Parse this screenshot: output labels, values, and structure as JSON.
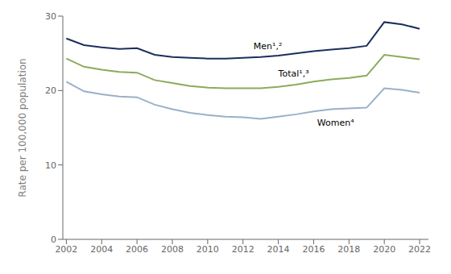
{
  "chart_data": {
    "type": "line",
    "ylabel": "Rate per 100,000 population",
    "x": [
      2002,
      2003,
      2004,
      2005,
      2006,
      2007,
      2008,
      2009,
      2010,
      2011,
      2012,
      2013,
      2014,
      2015,
      2016,
      2017,
      2018,
      2019,
      2020,
      2021,
      2022
    ],
    "series": [
      {
        "color": "#1b2f5e",
        "values": [
          27.0,
          26.1,
          25.8,
          25.6,
          25.7,
          24.8,
          24.5,
          24.4,
          24.3,
          24.3,
          24.4,
          24.5,
          24.7,
          25.0,
          25.3,
          25.5,
          25.7,
          26.0,
          29.2,
          28.9,
          28.3
        ]
      },
      {
        "color": "#8aac5a",
        "values": [
          24.3,
          23.2,
          22.8,
          22.5,
          22.4,
          21.4,
          21.0,
          20.6,
          20.4,
          20.3,
          20.3,
          20.3,
          20.5,
          20.8,
          21.2,
          21.5,
          21.7,
          22.0,
          24.8,
          24.5,
          24.2
        ]
      },
      {
        "color": "#9ab0c8",
        "values": [
          21.2,
          19.9,
          19.5,
          19.2,
          19.1,
          18.1,
          17.5,
          17.0,
          16.7,
          16.5,
          16.4,
          16.2,
          16.5,
          16.8,
          17.2,
          17.5,
          17.6,
          17.7,
          20.3,
          20.1,
          19.7
        ]
      }
    ],
    "annotations": [
      {
        "text": "Men¹,²",
        "x": 2012.6,
        "y": 25.2
      },
      {
        "text": "Total¹,³",
        "x": 2014.0,
        "y": 21.5
      },
      {
        "text": "Women⁴",
        "x": 2016.2,
        "y": 16.5
      }
    ],
    "xlim": [
      2001.8,
      2022.5
    ],
    "xticks": [
      2002,
      2004,
      2006,
      2008,
      2010,
      2012,
      2014,
      2016,
      2018,
      2020,
      2022
    ],
    "ylim": [
      0,
      30
    ],
    "yticks": [
      0,
      10,
      20,
      30
    ],
    "grid": false
  }
}
